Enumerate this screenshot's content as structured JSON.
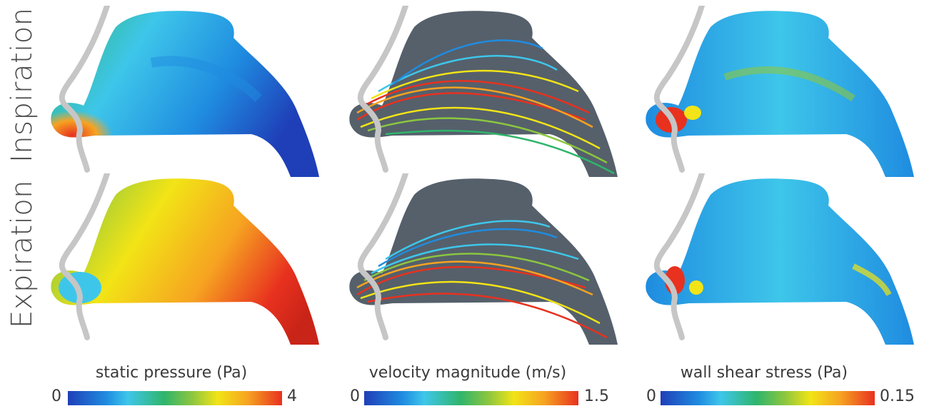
{
  "rows": [
    "Inspiration",
    "Expiration"
  ],
  "colorbars": [
    {
      "title": "static pressure (Pa)",
      "min": "0",
      "max": "4"
    },
    {
      "title": "velocity magnitude (m/s)",
      "min": "0",
      "max": "1.5"
    },
    {
      "title": "wall shear stress (Pa)",
      "min": "0",
      "max": "0.15"
    }
  ],
  "colors": {
    "low": "#1f3fb8",
    "mid_low": "#3ec6ea",
    "mid": "#2fb56b",
    "mid_high": "#f2e416",
    "high": "#e8311f",
    "grey_region": "#55606b",
    "profile_line": "#c6c6c6"
  }
}
